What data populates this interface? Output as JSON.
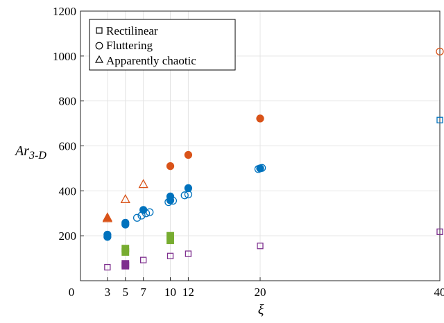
{
  "chart_data": {
    "type": "scatter",
    "xlabel": "ξ",
    "ylabel_main": "Ar",
    "ylabel_sub": "3-D",
    "xlim": [
      0,
      40
    ],
    "ylim": [
      0,
      1200
    ],
    "xticks": [
      0,
      3,
      5,
      7,
      10,
      12,
      20,
      40
    ],
    "yticks": [
      200,
      400,
      600,
      800,
      1000,
      1200
    ],
    "grid": true,
    "legend_position": "top-left",
    "legend": [
      {
        "label": "Rectilinear",
        "marker": "square"
      },
      {
        "label": "Fluttering",
        "marker": "circle"
      },
      {
        "label": "Apparently chaotic",
        "marker": "triangle"
      }
    ],
    "colors": {
      "orange": "#d95319",
      "blue": "#0072bd",
      "green": "#77ac30",
      "purple": "#7e2f8e"
    },
    "series": [
      {
        "marker": "circle",
        "fill": "filled",
        "color": "orange",
        "points": [
          [
            10,
            510
          ],
          [
            12,
            560
          ],
          [
            20,
            722
          ]
        ]
      },
      {
        "marker": "circle",
        "fill": "open",
        "color": "orange",
        "points": [
          [
            40,
            1020
          ]
        ]
      },
      {
        "marker": "triangle",
        "fill": "filled",
        "color": "orange",
        "points": [
          [
            3,
            282
          ]
        ]
      },
      {
        "marker": "triangle",
        "fill": "open",
        "color": "orange",
        "points": [
          [
            3,
            278
          ],
          [
            5,
            363
          ],
          [
            7,
            430
          ]
        ]
      },
      {
        "marker": "circle",
        "fill": "filled",
        "color": "blue",
        "points": [
          [
            3,
            195
          ],
          [
            3,
            205
          ],
          [
            5,
            250
          ],
          [
            5,
            258
          ],
          [
            7,
            315
          ],
          [
            10,
            375
          ],
          [
            10,
            358
          ],
          [
            12,
            412
          ],
          [
            20,
            500
          ]
        ]
      },
      {
        "marker": "circle",
        "fill": "open",
        "color": "blue",
        "points": [
          [
            6.3,
            280
          ],
          [
            6.8,
            290
          ],
          [
            7.3,
            300
          ],
          [
            7.7,
            305
          ],
          [
            9.8,
            350
          ],
          [
            10.3,
            356
          ],
          [
            11.6,
            380
          ],
          [
            12,
            384
          ],
          [
            19.8,
            497
          ],
          [
            20.2,
            502
          ]
        ]
      },
      {
        "marker": "square",
        "fill": "open",
        "color": "blue",
        "points": [
          [
            40,
            715
          ]
        ]
      },
      {
        "marker": "square",
        "fill": "filled",
        "color": "green",
        "points": [
          [
            5,
            128
          ],
          [
            5,
            143
          ],
          [
            10,
            180
          ],
          [
            10,
            200
          ]
        ]
      },
      {
        "marker": "square",
        "fill": "filled",
        "color": "purple",
        "points": [
          [
            5,
            67
          ],
          [
            5,
            75
          ]
        ]
      },
      {
        "marker": "square",
        "fill": "open",
        "color": "purple",
        "points": [
          [
            3,
            60
          ],
          [
            7,
            92
          ],
          [
            10,
            110
          ],
          [
            12,
            120
          ],
          [
            20,
            155
          ],
          [
            40,
            218
          ]
        ]
      }
    ]
  }
}
